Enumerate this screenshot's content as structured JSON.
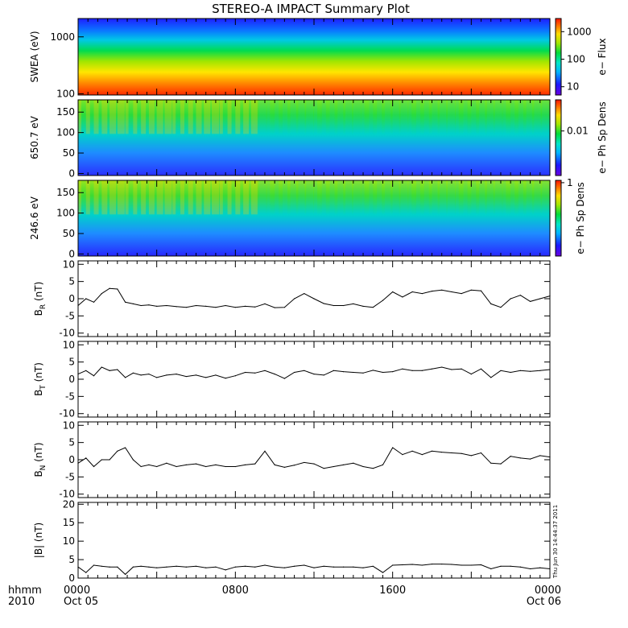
{
  "title": "STEREO-A IMPACT Summary Plot",
  "stamp": "Thu Jun 30 14:44:37 2011",
  "time_axis": {
    "prefix_top": "hhmm",
    "prefix_bottom": "2010",
    "ticks": [
      {
        "hour": 0,
        "label": "0000",
        "sub": "Oct 05"
      },
      {
        "hour": 8,
        "label": "0800",
        "sub": ""
      },
      {
        "hour": 16,
        "label": "1600",
        "sub": ""
      },
      {
        "hour": 24,
        "label": "0000",
        "sub": "Oct 06"
      }
    ],
    "range_hours": [
      0,
      24
    ]
  },
  "spectrograms": [
    {
      "ylabel": "SWEA (eV)",
      "ytype": "log",
      "yticks": [
        {
          "v": 100,
          "label": "100"
        },
        {
          "v": 1000,
          "label": "1000"
        }
      ],
      "ylim": [
        95,
        2100
      ],
      "colorbar_label": "e− Flux",
      "colorbar_ticks": [
        {
          "v": 10,
          "label": "10"
        },
        {
          "v": 100,
          "label": "100"
        },
        {
          "v": 1000,
          "label": "1000"
        }
      ],
      "colorbar_log": true,
      "colorbar_range": [
        5,
        3000
      ]
    },
    {
      "ylabel": "650.7 eV",
      "ytype": "linear",
      "yticks": [
        {
          "v": 0,
          "label": "0"
        },
        {
          "v": 50,
          "label": "50"
        },
        {
          "v": 100,
          "label": "100"
        },
        {
          "v": 150,
          "label": "150"
        }
      ],
      "ylim": [
        -5,
        180
      ],
      "colorbar_label": "e− Ph Sp Dens",
      "colorbar_ticks": [
        {
          "v": 0.01,
          "label": "0.01"
        }
      ],
      "colorbar_log": true,
      "colorbar_range": [
        0.001,
        0.05
      ]
    },
    {
      "ylabel": "246.6 eV",
      "ytype": "linear",
      "yticks": [
        {
          "v": 0,
          "label": "0"
        },
        {
          "v": 50,
          "label": "50"
        },
        {
          "v": 100,
          "label": "100"
        },
        {
          "v": 150,
          "label": "150"
        }
      ],
      "ylim": [
        -5,
        180
      ],
      "colorbar_label": "e− Ph Sp Dens",
      "colorbar_ticks": [
        {
          "v": 1,
          "label": "1"
        }
      ],
      "colorbar_log": true,
      "colorbar_range": [
        0.05,
        1.1
      ]
    }
  ],
  "chart_data": [
    {
      "type": "line",
      "ylabel": "B",
      "ylabel_sub": "R",
      "ylabel_unit": "(nT)",
      "ylim": [
        -11,
        11
      ],
      "yticks": [
        -10,
        -5,
        0,
        5,
        10
      ],
      "x": [
        0,
        0.4,
        0.8,
        1.2,
        1.6,
        2.0,
        2.4,
        2.8,
        3.2,
        3.6,
        4.0,
        4.5,
        5.0,
        5.5,
        6.0,
        6.5,
        7.0,
        7.5,
        8.0,
        8.5,
        9.0,
        9.5,
        10.0,
        10.5,
        11.0,
        11.5,
        12.0,
        12.5,
        13.0,
        13.5,
        14.0,
        14.5,
        15.0,
        15.5,
        16.0,
        16.5,
        17.0,
        17.5,
        18.0,
        18.5,
        19.0,
        19.5,
        20.0,
        20.5,
        21.0,
        21.5,
        22.0,
        22.5,
        23.0,
        23.5,
        24.0
      ],
      "values": [
        -2,
        0,
        -1,
        1.5,
        3,
        2.8,
        -1,
        -1.5,
        -2,
        -1.8,
        -2.2,
        -2,
        -2.3,
        -2.5,
        -2,
        -2.2,
        -2.5,
        -2,
        -2.5,
        -2.2,
        -2.4,
        -1.5,
        -2.6,
        -2.5,
        0,
        1.5,
        0,
        -1.4,
        -2,
        -2,
        -1.5,
        -2.2,
        -2.5,
        -0.5,
        2,
        0.5,
        2,
        1.5,
        2.2,
        2.5,
        2,
        1.5,
        2.5,
        2.3,
        -1.5,
        -2.5,
        0,
        1,
        -0.8,
        0,
        0.8
      ]
    },
    {
      "type": "line",
      "ylabel": "B",
      "ylabel_sub": "T",
      "ylabel_unit": "(nT)",
      "ylim": [
        -11,
        11
      ],
      "yticks": [
        -10,
        -5,
        0,
        5,
        10
      ],
      "x": [
        0,
        0.4,
        0.8,
        1.2,
        1.6,
        2.0,
        2.4,
        2.8,
        3.2,
        3.6,
        4.0,
        4.5,
        5.0,
        5.5,
        6.0,
        6.5,
        7.0,
        7.5,
        8.0,
        8.5,
        9.0,
        9.5,
        10.0,
        10.5,
        11.0,
        11.5,
        12.0,
        12.5,
        13.0,
        13.5,
        14.0,
        14.5,
        15.0,
        15.5,
        16.0,
        16.5,
        17.0,
        17.5,
        18.0,
        18.5,
        19.0,
        19.5,
        20.0,
        20.5,
        21.0,
        21.5,
        22.0,
        22.5,
        23.0,
        23.5,
        24.0
      ],
      "values": [
        1.5,
        2.5,
        1,
        3.5,
        2.5,
        2.8,
        0.5,
        1.8,
        1.2,
        1.5,
        0.5,
        1.2,
        1.5,
        0.8,
        1.2,
        0.5,
        1.2,
        0.3,
        1,
        2,
        1.8,
        2.5,
        1.5,
        0.2,
        2,
        2.5,
        1.5,
        1.2,
        2.5,
        2.2,
        2,
        1.8,
        2.6,
        2,
        2.2,
        3,
        2.5,
        2.5,
        3,
        3.5,
        2.8,
        3,
        1.5,
        3,
        0.5,
        2.5,
        2,
        2.5,
        2.3,
        2.5,
        2.8
      ]
    },
    {
      "type": "line",
      "ylabel": "B",
      "ylabel_sub": "N",
      "ylabel_unit": "(nT)",
      "ylim": [
        -11,
        11
      ],
      "yticks": [
        -10,
        -5,
        0,
        5,
        10
      ],
      "x": [
        0,
        0.4,
        0.8,
        1.2,
        1.6,
        2.0,
        2.4,
        2.8,
        3.2,
        3.6,
        4.0,
        4.5,
        5.0,
        5.5,
        6.0,
        6.5,
        7.0,
        7.5,
        8.0,
        8.5,
        9.0,
        9.5,
        10.0,
        10.5,
        11.0,
        11.5,
        12.0,
        12.5,
        13.0,
        13.5,
        14.0,
        14.5,
        15.0,
        15.5,
        16.0,
        16.5,
        17.0,
        17.5,
        18.0,
        18.5,
        19.0,
        19.5,
        20.0,
        20.5,
        21.0,
        21.5,
        22.0,
        22.5,
        23.0,
        23.5,
        24.0
      ],
      "values": [
        -1,
        0.5,
        -2,
        0,
        0,
        2.5,
        3.5,
        0,
        -2,
        -1.5,
        -2,
        -1,
        -2,
        -1.5,
        -1.2,
        -2,
        -1.5,
        -2,
        -2,
        -1.5,
        -1.2,
        2.5,
        -1.5,
        -2.2,
        -1.6,
        -0.8,
        -1.2,
        -2.5,
        -2,
        -1.5,
        -1,
        -2,
        -2.5,
        -1.5,
        3.5,
        1.5,
        2.5,
        1.5,
        2.5,
        2.2,
        2,
        1.8,
        1.2,
        2,
        -1,
        -1.2,
        1,
        0.5,
        0.2,
        1.2,
        0.8
      ]
    },
    {
      "type": "line",
      "ylabel": "|B|",
      "ylabel_sub": "",
      "ylabel_unit": "(nT)",
      "ylim": [
        0,
        20.5
      ],
      "yticks": [
        0,
        5,
        10,
        15,
        20
      ],
      "x": [
        0,
        0.4,
        0.8,
        1.2,
        1.6,
        2.0,
        2.4,
        2.8,
        3.2,
        3.6,
        4.0,
        4.5,
        5.0,
        5.5,
        6.0,
        6.5,
        7.0,
        7.5,
        8.0,
        8.5,
        9.0,
        9.5,
        10.0,
        10.5,
        11.0,
        11.5,
        12.0,
        12.5,
        13.0,
        13.5,
        14.0,
        14.5,
        15.0,
        15.5,
        16.0,
        16.5,
        17.0,
        17.5,
        18.0,
        18.5,
        19.0,
        19.5,
        20.0,
        20.5,
        21.0,
        21.5,
        22.0,
        22.5,
        23.0,
        23.5,
        24.0
      ],
      "values": [
        3,
        1.5,
        3.5,
        3.2,
        3,
        3,
        1,
        3,
        3.2,
        3,
        2.8,
        3,
        3.2,
        3,
        3.2,
        2.8,
        3,
        2.2,
        3,
        3.2,
        3,
        3.5,
        3,
        2.8,
        3.2,
        3.5,
        2.8,
        3.2,
        3,
        3,
        3,
        2.8,
        3.2,
        1.5,
        3.5,
        3.6,
        3.7,
        3.5,
        3.8,
        3.8,
        3.7,
        3.5,
        3.5,
        3.6,
        2.5,
        3.2,
        3.2,
        3,
        2.5,
        2.8,
        2.5
      ]
    }
  ]
}
